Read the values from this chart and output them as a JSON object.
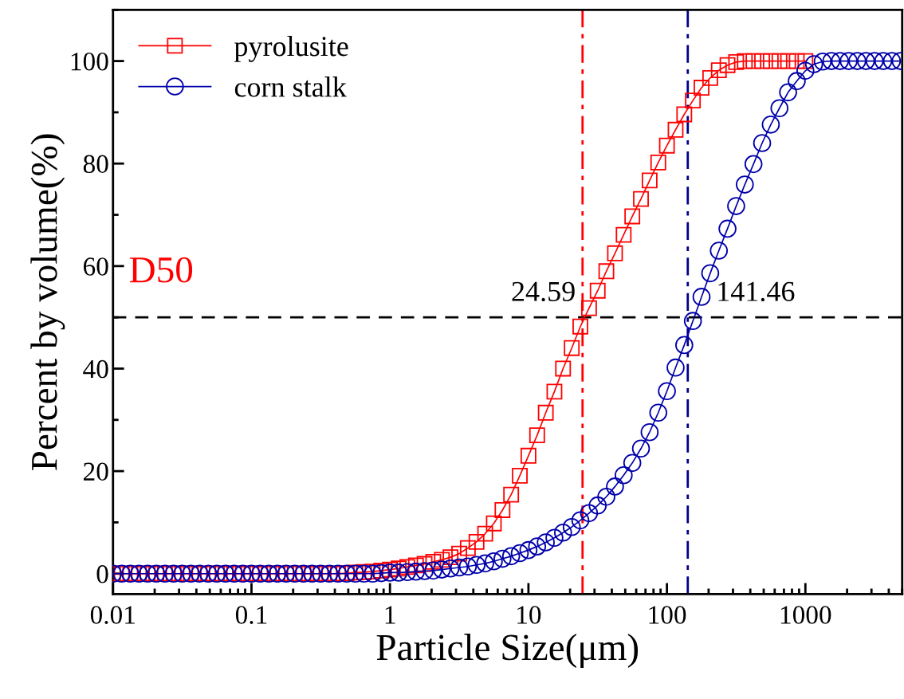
{
  "chart_data": {
    "type": "line",
    "xlabel": "Particle Size(μm)",
    "ylabel": "Percent by volume(%)",
    "log": "x",
    "xlim": [
      0.01,
      5000
    ],
    "xticks": [
      0.01,
      0.1,
      1,
      10,
      100,
      1000
    ],
    "ylim": [
      -4,
      110
    ],
    "yticks": [
      0,
      20,
      40,
      60,
      80,
      100
    ],
    "grid": false,
    "legend": "top left",
    "line_style": "solid",
    "series": [
      {
        "name": "pyrolusite",
        "color": "#ff0000",
        "marker": "square",
        "x": [
          0.01,
          0.01155,
          0.01334,
          0.0154,
          0.01778,
          0.02054,
          0.02371,
          0.02738,
          0.03162,
          0.03652,
          0.04217,
          0.0487,
          0.05623,
          0.06494,
          0.07499,
          0.0866,
          0.1,
          0.1155,
          0.1334,
          0.154,
          0.1778,
          0.2054,
          0.2371,
          0.2738,
          0.3162,
          0.3652,
          0.4217,
          0.487,
          0.5623,
          0.6494,
          0.7499,
          0.866,
          1,
          1.155,
          1.334,
          1.54,
          1.778,
          2.054,
          2.371,
          2.738,
          3.162,
          3.652,
          4.217,
          4.87,
          5.623,
          6.494,
          7.499,
          8.66,
          10,
          11.55,
          13.34,
          15.4,
          17.78,
          20.54,
          23.71,
          27.38,
          31.62,
          36.52,
          42.17,
          48.7,
          56.23,
          64.94,
          74.99,
          86.6,
          100,
          115.5,
          133.4,
          154,
          177.8,
          205.4,
          237.1,
          273.8,
          316.2,
          365.2,
          421.7,
          487,
          562.3,
          649.4,
          749.9,
          866,
          1000
        ],
        "values": [
          0,
          0,
          0,
          0,
          0,
          0,
          0,
          0,
          0,
          0,
          0,
          0,
          0,
          0,
          0,
          0,
          0,
          0,
          0,
          0,
          0,
          0,
          0,
          0,
          0,
          0,
          0,
          0.1,
          0.2,
          0.3,
          0.4,
          0.6,
          0.8,
          1.0,
          1.3,
          1.6,
          1.9,
          2.3,
          2.7,
          3.2,
          3.9,
          5.0,
          6.2,
          7.8,
          9.8,
          12.4,
          15.4,
          19.1,
          23,
          27,
          31.4,
          35.5,
          40,
          44,
          48.2,
          51.8,
          55.2,
          59,
          62.5,
          66.1,
          69.7,
          73.1,
          76.7,
          80.2,
          83.5,
          86.6,
          89.6,
          92.3,
          94.8,
          96.7,
          98.2,
          99.2,
          99.8,
          100,
          100,
          100,
          100,
          100,
          100,
          100,
          100
        ]
      },
      {
        "name": "corn stalk",
        "color": "#0000aa",
        "marker": "circle",
        "x": [
          0.01,
          0.01155,
          0.01334,
          0.0154,
          0.01778,
          0.02054,
          0.02371,
          0.02738,
          0.03162,
          0.03652,
          0.04217,
          0.0487,
          0.05623,
          0.06494,
          0.07499,
          0.0866,
          0.1,
          0.1155,
          0.1334,
          0.154,
          0.1778,
          0.2054,
          0.2371,
          0.2738,
          0.3162,
          0.3652,
          0.4217,
          0.487,
          0.5623,
          0.6494,
          0.7499,
          0.866,
          1,
          1.155,
          1.334,
          1.54,
          1.778,
          2.054,
          2.371,
          2.738,
          3.162,
          3.652,
          4.217,
          4.87,
          5.623,
          6.494,
          7.499,
          8.66,
          10,
          11.55,
          13.34,
          15.4,
          17.78,
          20.54,
          23.71,
          27.38,
          31.62,
          36.52,
          42.17,
          48.7,
          56.23,
          64.94,
          74.99,
          86.6,
          100,
          115.5,
          133.4,
          154,
          177.8,
          205.4,
          237.1,
          273.8,
          316.2,
          365.2,
          421.7,
          487,
          562.3,
          649.4,
          749.9,
          866,
          1000,
          1155,
          1334,
          1540,
          1778,
          2054,
          2371,
          2738,
          3162,
          3652,
          4217,
          4870
        ],
        "values": [
          0,
          0,
          0,
          0,
          0,
          0,
          0,
          0,
          0,
          0,
          0,
          0,
          0,
          0,
          0,
          0,
          0,
          0,
          0,
          0,
          0,
          0,
          0,
          0,
          0,
          0,
          0,
          0,
          0,
          0,
          0,
          0.1,
          0.2,
          0.2,
          0.3,
          0.4,
          0.5,
          0.6,
          0.8,
          1.0,
          1.2,
          1.4,
          1.7,
          2.0,
          2.4,
          2.9,
          3.4,
          4.0,
          4.6,
          5.3,
          6.1,
          7.0,
          8.0,
          9.1,
          10.4,
          11.8,
          13.3,
          15.0,
          17.0,
          19.2,
          21.6,
          24.4,
          27.6,
          31.4,
          35.6,
          40.2,
          44.6,
          49.3,
          54,
          58.6,
          63,
          67.3,
          71.7,
          75.9,
          79.9,
          84,
          87.6,
          90.8,
          93.9,
          96.1,
          98.1,
          99.4,
          99.9,
          100,
          100,
          100,
          100,
          100,
          100,
          100,
          100,
          100
        ]
      }
    ],
    "ref_lines": [
      {
        "axis": "y",
        "value": 50,
        "color": "#000000",
        "line_style": "dashed"
      },
      {
        "axis": "x",
        "value": 24.59,
        "label": "24.59",
        "color": "#ff0000",
        "line_style": "dashdot"
      },
      {
        "axis": "x",
        "value": 141.46,
        "label": "141.46",
        "color": "#00008b",
        "line_style": "dashdot"
      }
    ],
    "annotations": [
      "D50"
    ]
  }
}
